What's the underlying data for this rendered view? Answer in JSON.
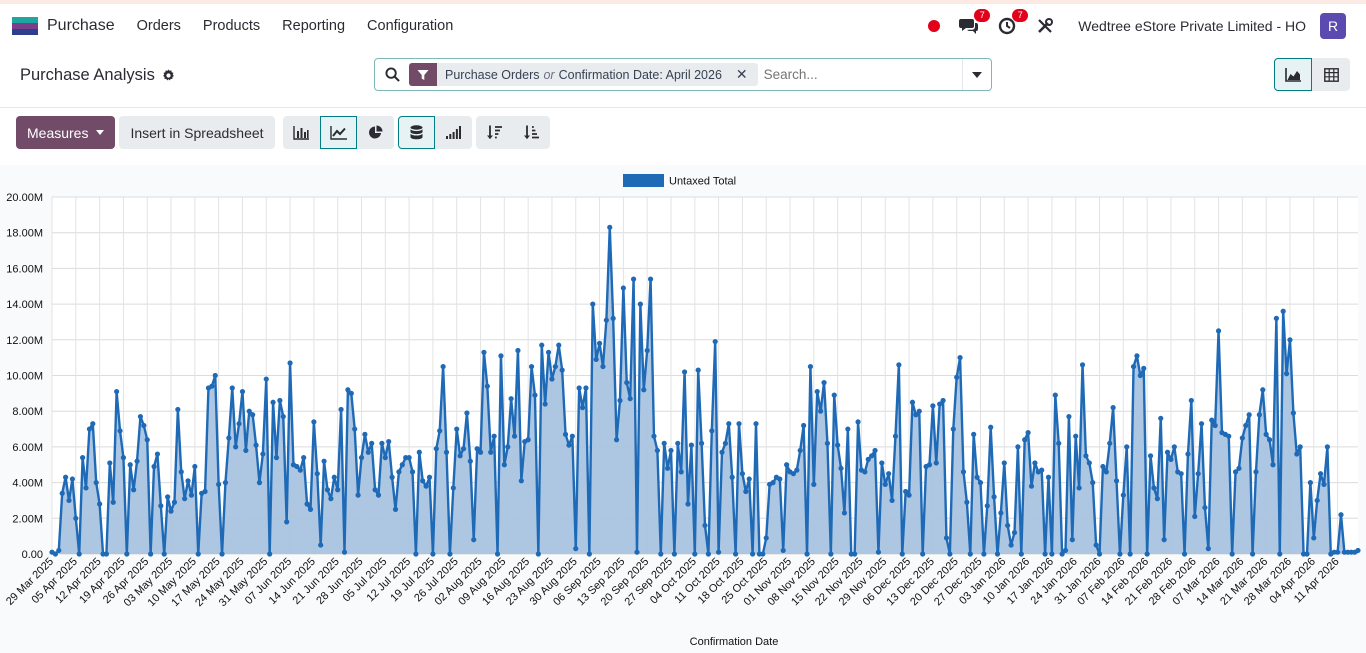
{
  "navbar": {
    "app_name": "Purchase",
    "menus": [
      "Orders",
      "Products",
      "Reporting",
      "Configuration"
    ],
    "messages_count": "7",
    "activities_count": "7",
    "company": "Wedtree eStore Private Limited - HO",
    "avatar_letter": "R"
  },
  "control": {
    "title": "Purchase Analysis",
    "facet_part1": "Purchase Orders",
    "facet_or": "or",
    "facet_part2": "Confirmation Date: April 2026",
    "search_placeholder": "Search..."
  },
  "toolbar": {
    "measures_label": "Measures",
    "spreadsheet_label": "Insert in Spreadsheet"
  },
  "colors": {
    "accent": "#714b67",
    "teal": "#017e84",
    "series": "#1f6ab6",
    "fill": "#a9c4e2"
  },
  "chart_data": {
    "type": "area",
    "xlabel": "Confirmation Date",
    "ylabel": "",
    "ylim": [
      0,
      20000000
    ],
    "yticks": [
      "0.00",
      "2.00M",
      "4.00M",
      "6.00M",
      "8.00M",
      "10.00M",
      "12.00M",
      "14.00M",
      "16.00M",
      "18.00M",
      "20.00M"
    ],
    "tick_labels": [
      "29 Mar 2025",
      "05 Apr 2025",
      "12 Apr 2025",
      "19 Apr 2025",
      "26 Apr 2025",
      "03 May 2025",
      "10 May 2025",
      "17 May 2025",
      "24 May 2025",
      "31 May 2025",
      "07 Jun 2025",
      "14 Jun 2025",
      "21 Jun 2025",
      "28 Jun 2025",
      "05 Jul 2025",
      "12 Jul 2025",
      "19 Jul 2025",
      "26 Jul 2025",
      "02 Aug 2025",
      "09 Aug 2025",
      "16 Aug 2025",
      "23 Aug 2025",
      "30 Aug 2025",
      "06 Sep 2025",
      "13 Sep 2025",
      "20 Sep 2025",
      "27 Sep 2025",
      "04 Oct 2025",
      "11 Oct 2025",
      "18 Oct 2025",
      "25 Oct 2025",
      "01 Nov 2025",
      "08 Nov 2025",
      "15 Nov 2025",
      "22 Nov 2025",
      "29 Nov 2025",
      "06 Dec 2025",
      "13 Dec 2025",
      "20 Dec 2025",
      "27 Dec 2025",
      "03 Jan 2026",
      "10 Jan 2026",
      "17 Jan 2026",
      "24 Jan 2026",
      "31 Jan 2026",
      "07 Feb 2026",
      "14 Feb 2026",
      "21 Feb 2026",
      "28 Feb 2026",
      "07 Mar 2026",
      "14 Mar 2026",
      "21 Mar 2026",
      "28 Mar 2026",
      "04 Apr 2026",
      "11 Apr 2026"
    ],
    "grid": true,
    "legend_position": "top-center",
    "series": [
      {
        "name": "Untaxed Total",
        "values": [
          0.1,
          0.0,
          0.2,
          3.4,
          4.3,
          3.0,
          4.2,
          2.0,
          0.0,
          5.4,
          3.7,
          7.0,
          7.3,
          4.0,
          2.8,
          0.0,
          0.0,
          5.1,
          2.9,
          9.1,
          6.9,
          5.4,
          0.0,
          5.0,
          3.6,
          5.2,
          7.7,
          7.2,
          6.4,
          0.0,
          4.9,
          5.6,
          2.7,
          0.0,
          3.2,
          2.4,
          2.9,
          8.1,
          4.6,
          3.1,
          4.1,
          3.3,
          4.9,
          0.0,
          3.4,
          3.5,
          9.3,
          9.4,
          10.0,
          3.9,
          0.0,
          4.0,
          6.5,
          9.3,
          6.0,
          7.3,
          9.1,
          5.8,
          8.0,
          7.8,
          6.1,
          4.0,
          5.6,
          9.8,
          0.0,
          8.5,
          5.4,
          8.6,
          7.7,
          1.8,
          10.7,
          5.0,
          4.9,
          4.7,
          5.4,
          2.8,
          2.5,
          7.4,
          4.5,
          0.5,
          5.2,
          3.6,
          3.1,
          4.3,
          3.6,
          8.1,
          0.1,
          9.2,
          9.0,
          7.0,
          3.3,
          5.4,
          6.7,
          5.7,
          6.2,
          3.6,
          3.3,
          6.2,
          5.4,
          6.3,
          4.3,
          2.5,
          4.6,
          5.0,
          5.4,
          5.4,
          4.6,
          0.0,
          5.7,
          4.1,
          3.8,
          4.3,
          0.0,
          5.9,
          6.9,
          10.5,
          5.7,
          0.0,
          3.7,
          7.0,
          5.5,
          5.9,
          7.9,
          5.2,
          0.8,
          5.9,
          5.7,
          11.3,
          9.4,
          5.7,
          6.6,
          0.0,
          11.1,
          5.0,
          6.0,
          8.7,
          6.6,
          11.4,
          4.1,
          6.3,
          6.4,
          10.5,
          8.9,
          0.0,
          11.7,
          8.4,
          11.3,
          9.8,
          10.5,
          11.7,
          10.3,
          6.7,
          6.1,
          6.6,
          0.3,
          9.3,
          8.2,
          9.3,
          0.0,
          14.0,
          10.9,
          11.8,
          10.5,
          13.1,
          18.3,
          13.2,
          6.4,
          8.6,
          14.9,
          9.6,
          8.7,
          15.4,
          0.1,
          14.0,
          9.2,
          11.4,
          15.4,
          6.6,
          5.8,
          0.0,
          6.2,
          4.8,
          5.8,
          0.0,
          6.2,
          4.6,
          10.2,
          2.8,
          6.1,
          0.0,
          10.3,
          6.2,
          1.6,
          0.0,
          6.9,
          11.9,
          0.1,
          5.7,
          6.2,
          7.3,
          4.3,
          0.0,
          7.3,
          4.5,
          3.5,
          4.2,
          0.0,
          7.3,
          0.0,
          0.0,
          0.9,
          3.9,
          4.0,
          4.3,
          4.2,
          0.2,
          5.0,
          4.6,
          4.5,
          4.7,
          5.8,
          7.2,
          0.0,
          10.5,
          3.9,
          9.1,
          8.0,
          9.6,
          6.2,
          0.0,
          8.9,
          6.1,
          4.8,
          2.3,
          7.0,
          0.0,
          0.0,
          7.4,
          4.7,
          4.6,
          5.3,
          5.5,
          5.8,
          0.1,
          5.1,
          3.9,
          4.5,
          3.0,
          6.6,
          10.6,
          0.0,
          3.5,
          3.3,
          8.5,
          7.8,
          8.0,
          0.0,
          4.9,
          5.0,
          8.3,
          5.1,
          8.4,
          8.6,
          0.9,
          0.0,
          7.0,
          9.9,
          11.0,
          4.6,
          2.9,
          0.0,
          6.7,
          4.3,
          4.0,
          0.0,
          2.7,
          7.1,
          3.2,
          0.0,
          2.3,
          5.1,
          1.6,
          0.5,
          1.2,
          6.0,
          0.0,
          6.4,
          6.8,
          3.8,
          5.1,
          4.6,
          4.7,
          0.0,
          4.3,
          0.0,
          8.9,
          6.2,
          0.0,
          0.2,
          7.7,
          0.8,
          6.6,
          3.7,
          10.6,
          5.5,
          5.1,
          4.0,
          0.5,
          0.0,
          4.9,
          4.6,
          6.2,
          8.2,
          4.1,
          0.0,
          3.3,
          6.0,
          0.0,
          10.5,
          11.1,
          10.0,
          10.4,
          0.0,
          5.5,
          3.7,
          3.1,
          7.6,
          0.8,
          5.7,
          5.3,
          6.0,
          4.6,
          4.5,
          0.0,
          5.6,
          8.6,
          2.1,
          4.5,
          7.3,
          2.6,
          0.3,
          7.5,
          7.2,
          12.5,
          6.8,
          6.7,
          6.6,
          0.0,
          4.6,
          4.8,
          6.5,
          7.2,
          7.8,
          0.0,
          4.6,
          7.8,
          9.2,
          6.7,
          6.4,
          5.0,
          13.2,
          0.0,
          13.6,
          10.1,
          12.0,
          7.9,
          5.6,
          6.0,
          0.0,
          0.0,
          4.0,
          0.9,
          3.0,
          4.5,
          3.9,
          6.0,
          0.0,
          0.1,
          0.1,
          2.2,
          0.1,
          0.1,
          0.1,
          0.1,
          0.2
        ]
      }
    ]
  }
}
